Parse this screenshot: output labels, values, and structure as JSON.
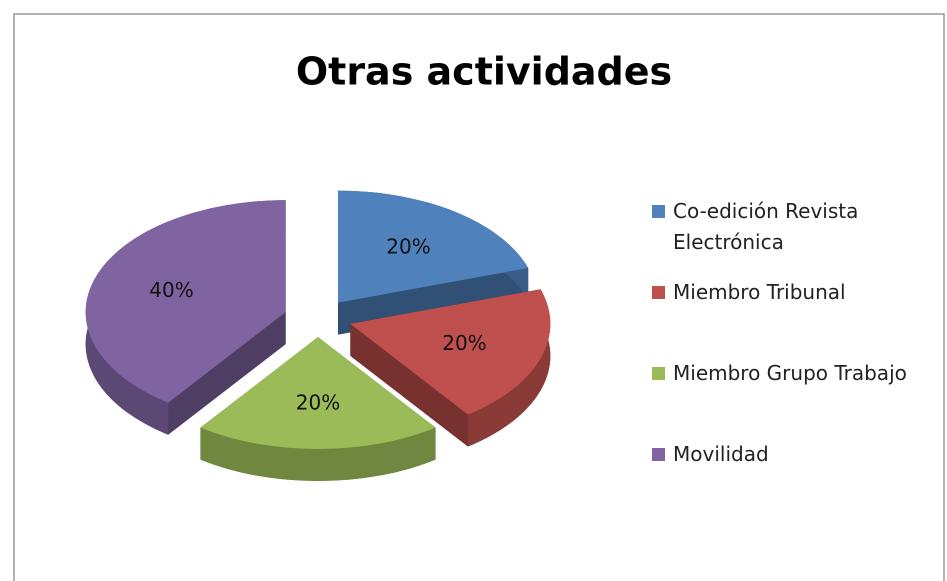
{
  "chart_data": {
    "type": "pie3d",
    "title": "Otras actividades",
    "categories": [
      "Co-edición Revista Electrónica",
      "Miembro Tribunal",
      "Miembro Grupo Trabajo",
      "Movilidad"
    ],
    "values": [
      20,
      20,
      20,
      40
    ],
    "value_labels": [
      "20%",
      "20%",
      "20%",
      "40%"
    ],
    "colors": [
      "#4f81bd",
      "#c0504d",
      "#9bbb59",
      "#8064a2"
    ],
    "legend": "right"
  }
}
